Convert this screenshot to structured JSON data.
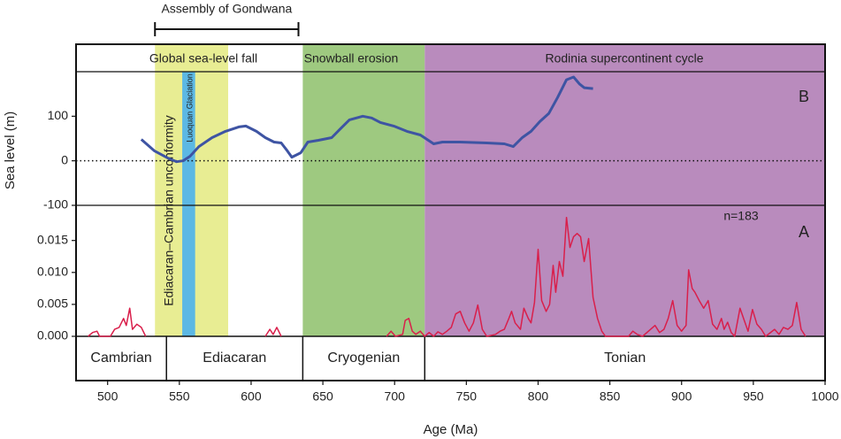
{
  "x_axis": {
    "label": "Age (Ma)",
    "xlim": [
      478,
      1000
    ],
    "xticks": [
      500,
      550,
      600,
      650,
      700,
      750,
      800,
      850,
      900,
      950,
      1000
    ]
  },
  "bracket": {
    "label": "Assembly of Gondwana",
    "start": 533,
    "end": 633
  },
  "header_labels": [
    "Global sea-level fall",
    "Snowball erosion",
    "Rodinia supercontinent cycle"
  ],
  "zones": [
    {
      "start": 533,
      "end": 584,
      "color": "#e8ed93",
      "label": "Ediacaran–Cambrian unconformity"
    },
    {
      "start": 552,
      "end": 561,
      "color": "#5cb8e4",
      "label": "Luoquan  Glaciation"
    },
    {
      "start": 636,
      "end": 721,
      "color": "#9ec980"
    },
    {
      "start": 721,
      "end": 1000,
      "color": "#b98bbd"
    }
  ],
  "periods": [
    {
      "name": "Cambrian",
      "start": 478,
      "end": 541
    },
    {
      "name": "Ediacaran",
      "start": 541,
      "end": 636
    },
    {
      "name": "Cryogenian",
      "start": 636,
      "end": 721
    },
    {
      "name": "Tonian",
      "start": 721,
      "end": 1000
    }
  ],
  "chart_data": [
    {
      "type": "line",
      "panel_label": "B",
      "y_label": "Sea level (m)",
      "color": "#3e54a3",
      "ylim": [
        -100,
        200
      ],
      "yticks": [
        -100,
        0,
        100
      ],
      "x": [
        523.5,
        532.7,
        542,
        548.1,
        552.5,
        557.4,
        563.6,
        572.8,
        582.1,
        591.4,
        596.3,
        603.7,
        609.9,
        616,
        621,
        625.3,
        628.4,
        634.6,
        639.5,
        646.9,
        656.2,
        662.3,
        668.5,
        677.8,
        684,
        690.1,
        699.4,
        708.6,
        717.9,
        727.2,
        733.3,
        745.7,
        764.2,
        776.5,
        782.7,
        788.9,
        795.1,
        801.2,
        807.4,
        813.6,
        819.8,
        824.7,
        829,
        832.1,
        838.3
      ],
      "values": [
        48,
        22,
        6,
        -2,
        0,
        10,
        32,
        52,
        66,
        76,
        78,
        66,
        52,
        42,
        40,
        22,
        8,
        18,
        42,
        46,
        52,
        72,
        92,
        100,
        96,
        86,
        78,
        66,
        58,
        38,
        42,
        42,
        40,
        38,
        32,
        52,
        66,
        88,
        106,
        142,
        182,
        188,
        172,
        164,
        162
      ]
    },
    {
      "type": "line",
      "panel_label": "A",
      "annotation": "n=183",
      "color": "#d91f4b",
      "ylim": [
        0,
        0.0205
      ],
      "yticks": [
        {
          "value": 0,
          "label": "0.000"
        },
        {
          "value": 0.005,
          "label": "0.005"
        },
        {
          "value": 0.01,
          "label": "0.010"
        },
        {
          "value": 0.015,
          "label": "0.015"
        }
      ],
      "x": [
        486.4,
        489.5,
        492.6,
        494.4,
        501.9,
        504.9,
        508,
        511.1,
        513,
        515.4,
        517.3,
        520.4,
        523.5,
        526.5,
        568,
        609.9,
        613,
        615.4,
        617.9,
        621,
        660,
        694.4,
        697.5,
        700.6,
        705.6,
        707.4,
        709.9,
        712.3,
        714.8,
        717.9,
        721,
        724.1,
        727.2,
        730.2,
        733.3,
        736.4,
        739.5,
        742.6,
        745.7,
        748.8,
        751.9,
        754.9,
        758,
        761.1,
        764.2,
        770.4,
        773.5,
        776.5,
        779.6,
        781.5,
        784,
        787.7,
        790.1,
        793.2,
        795.1,
        797.5,
        800,
        802.5,
        805.6,
        808,
        810.5,
        812.3,
        814.8,
        817.3,
        819.8,
        822.2,
        824.7,
        827.2,
        829.6,
        832.1,
        835.2,
        838.3,
        841.4,
        844.4,
        846.9,
        863,
        866,
        869.1,
        872.8,
        878.4,
        881.5,
        884.6,
        887.7,
        890.7,
        893.8,
        896.9,
        900,
        903.1,
        904.9,
        907.4,
        909.3,
        912.3,
        915.4,
        918.5,
        921.6,
        924.7,
        927.8,
        929.6,
        932.1,
        934.6,
        937,
        940.7,
        943.2,
        946.3,
        949.4,
        952.5,
        955.6,
        958.6,
        964.8,
        967.9,
        971,
        974.1,
        977.2,
        980.2,
        983.3,
        986.4
      ],
      "values": [
        0,
        0.0006,
        0.0008,
        0,
        0,
        0.0011,
        0.0014,
        0.0028,
        0.0017,
        0.0044,
        0.0011,
        0.0019,
        0.0014,
        0,
        null,
        0,
        0.0011,
        0.0003,
        0.0014,
        0,
        null,
        0,
        0.0008,
        0,
        0.0003,
        0.0025,
        0.0028,
        0.0008,
        0.0003,
        0.0008,
        0,
        0.0006,
        0,
        0.0007,
        0.0003,
        0.0008,
        0.0014,
        0.0035,
        0.0039,
        0.0021,
        0.0008,
        0.0021,
        0.0049,
        0.0011,
        0,
        0.0003,
        0.0008,
        0.0011,
        0.0028,
        0.0039,
        0.0021,
        0.0011,
        0.0044,
        0.0028,
        0.0021,
        0.0053,
        0.0136,
        0.0056,
        0.0039,
        0.005,
        0.0111,
        0.0069,
        0.0117,
        0.0094,
        0.0186,
        0.0139,
        0.0156,
        0.0161,
        0.0156,
        0.0117,
        0.0153,
        0.0061,
        0.0028,
        0.0008,
        0,
        0,
        0.0008,
        0.0003,
        0,
        0.0011,
        0.0017,
        0.0006,
        0.0011,
        0.0028,
        0.0056,
        0.0017,
        0.0008,
        0.0017,
        0.0104,
        0.0075,
        0.0069,
        0.0056,
        0.0044,
        0.0056,
        0.0019,
        0.0011,
        0.0028,
        0.0011,
        0.0022,
        0.0006,
        0,
        0.0044,
        0.0028,
        0.0008,
        0.0042,
        0.0019,
        0.0011,
        0,
        0.0011,
        0.0003,
        0.0014,
        0.0011,
        0.0017,
        0.0053,
        0.0011,
        0
      ]
    }
  ]
}
